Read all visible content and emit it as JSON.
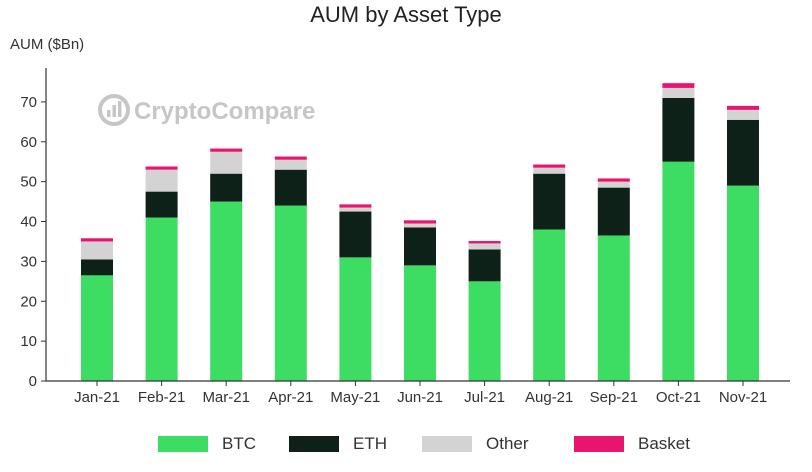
{
  "chart_data": {
    "type": "bar",
    "stacked": true,
    "title": "AUM by Asset Type",
    "ylabel": "AUM ($Bn)",
    "xlabel": "",
    "ylim": [
      0,
      78
    ],
    "yticks": [
      0,
      10,
      20,
      30,
      40,
      50,
      60,
      70
    ],
    "grid": false,
    "legend_position": "bottom",
    "watermark": "CryptoCompare",
    "categories": [
      "Jan-21",
      "Feb-21",
      "Mar-21",
      "Apr-21",
      "May-21",
      "Jun-21",
      "Jul-21",
      "Aug-21",
      "Sep-21",
      "Oct-21",
      "Nov-21"
    ],
    "series": [
      {
        "name": "BTC",
        "color": "#3ddc62",
        "values": [
          26.5,
          41.0,
          45.0,
          44.0,
          31.0,
          29.0,
          25.0,
          38.0,
          36.5,
          55.0,
          49.0
        ]
      },
      {
        "name": "ETH",
        "color": "#0d2119",
        "values": [
          4.0,
          6.5,
          7.0,
          9.0,
          11.5,
          9.5,
          8.0,
          14.0,
          12.0,
          16.0,
          16.5
        ]
      },
      {
        "name": "Other",
        "color": "#d3d3d3",
        "values": [
          4.5,
          5.5,
          5.5,
          2.5,
          1.0,
          1.0,
          1.5,
          1.5,
          1.5,
          2.5,
          2.5
        ]
      },
      {
        "name": "Basket",
        "color": "#e8156f",
        "values": [
          0.8,
          0.8,
          0.8,
          0.8,
          0.8,
          0.8,
          0.6,
          0.8,
          0.8,
          1.2,
          1.0
        ]
      }
    ]
  }
}
